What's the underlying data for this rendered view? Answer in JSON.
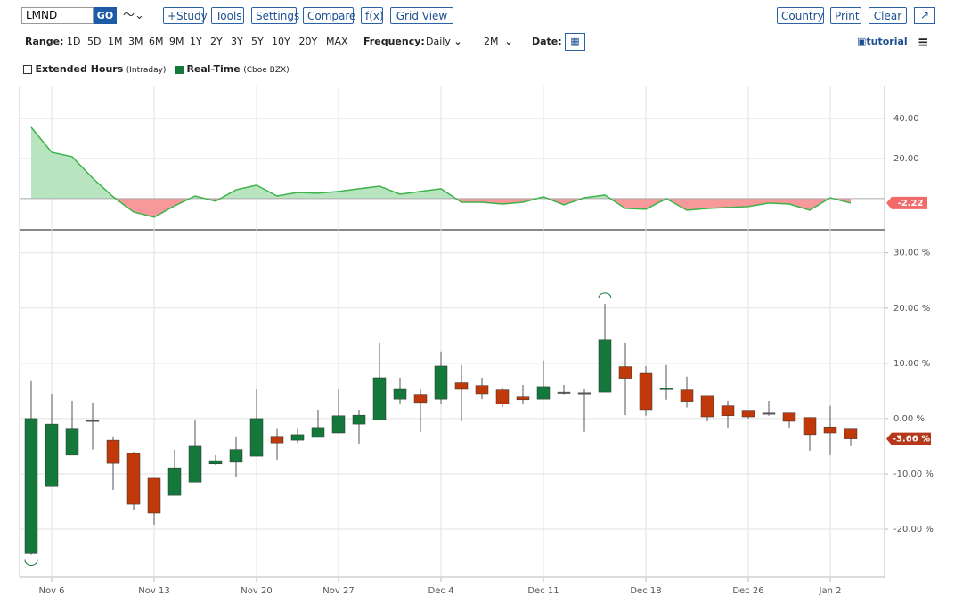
{
  "toolbar": {
    "symbol": "LMND",
    "go": "GO",
    "buttons": [
      "+Study",
      "Tools",
      "Settings",
      "Compare",
      "f(x)",
      "Grid View"
    ],
    "right_buttons": [
      "Country",
      "Print",
      "Clear"
    ]
  },
  "range": {
    "label": "Range:",
    "options": [
      "1D",
      "5D",
      "1M",
      "3M",
      "6M",
      "9M",
      "1Y",
      "2Y",
      "3Y",
      "5Y",
      "10Y",
      "20Y",
      "MAX"
    ]
  },
  "frequency": {
    "label": "Frequency:",
    "value": "Daily"
  },
  "period": "2M",
  "date_label": "Date:",
  "tutorial": "tutorial",
  "legend": [
    {
      "label": "Extended Hours",
      "note": "(Intraday)"
    },
    {
      "label": "Real-Time",
      "note": "(Cboe BZX)"
    }
  ],
  "chart_data": [
    {
      "type": "area",
      "values": [
        35.6,
        23.1,
        20.9,
        10.2,
        0.9,
        -6.7,
        -9.3,
        -3.6,
        1.3,
        -1.3,
        4.4,
        6.7,
        1.3,
        3.1,
        2.7,
        3.6,
        4.9,
        6.2,
        2.2,
        3.6,
        4.9,
        -1.8,
        -1.8,
        -2.7,
        -1.8,
        0.9,
        -3.1,
        0.4,
        1.8,
        -4.9,
        -5.3,
        0,
        -5.8,
        -4.9,
        -4.4,
        -4.0,
        -2.2,
        -2.7,
        -5.8,
        0.4,
        -2.22
      ],
      "ylim": [
        -15.6,
        56.9
      ],
      "yticks": [
        {
          "value": 20,
          "label": "20.00"
        },
        {
          "value": 40,
          "label": "40.00"
        }
      ],
      "line_color": "#3cb44b",
      "positive_color": "#b9e4c0",
      "negative_color": "#f7999b",
      "tag_color": "#f26b6b"
    },
    {
      "type": "candlestick",
      "categories": [
        null,
        "Nov 6",
        null,
        null,
        null,
        null,
        "Nov 13",
        null,
        null,
        null,
        null,
        "Nov 20",
        null,
        null,
        null,
        "Nov 27",
        null,
        null,
        null,
        null,
        "Dec 4",
        null,
        null,
        null,
        null,
        "Dec 11",
        null,
        null,
        null,
        null,
        "Dec 18",
        null,
        null,
        null,
        null,
        "Dec 26",
        null,
        null,
        null,
        "Jan 2",
        null
      ],
      "open": [
        -24.4,
        -12.3,
        -6.6,
        -0.3,
        -3.9,
        -6.3,
        -10.8,
        -13.9,
        -11.5,
        -8.2,
        -7.9,
        -6.8,
        -3.2,
        -3.9,
        -3.4,
        -2.6,
        -1.0,
        -0.3,
        3.5,
        4.4,
        3.5,
        6.5,
        6.0,
        5.2,
        3.9,
        3.5,
        4.8,
        4.7,
        4.8,
        9.4,
        8.2,
        5.3,
        5.2,
        4.2,
        2.3,
        1.5,
        1.0,
        1.0,
        0.2,
        -1.5,
        -1.9
      ],
      "high": [
        6.8,
        4.5,
        3.2,
        2.9,
        -3.2,
        -6.0,
        -10.8,
        -5.6,
        -0.3,
        -6.6,
        -3.2,
        5.3,
        -1.9,
        -1.9,
        1.6,
        5.3,
        1.6,
        13.7,
        7.4,
        5.3,
        12.1,
        9.7,
        7.4,
        5.5,
        6.1,
        10.5,
        6.1,
        5.3,
        20.8,
        13.7,
        9.5,
        9.7,
        7.6,
        4.2,
        3.2,
        1.5,
        3.2,
        1.0,
        0.2,
        2.3,
        -1.9
      ],
      "low": [
        -24.6,
        -12.3,
        -6.6,
        -5.6,
        -12.9,
        -16.6,
        -19.2,
        -13.9,
        -11.5,
        -8.4,
        -10.5,
        -6.8,
        -7.4,
        -4.4,
        -3.4,
        -2.6,
        -4.5,
        -0.3,
        2.6,
        -2.4,
        2.6,
        -0.5,
        3.5,
        2.1,
        2.6,
        3.5,
        4.4,
        -2.4,
        4.8,
        0.6,
        0.5,
        3.4,
        2.0,
        -0.5,
        -1.6,
        0,
        0.5,
        -1.6,
        -5.8,
        -6.6,
        -5.0
      ],
      "close": [
        0,
        -1.0,
        -1.9,
        -0.3,
        -8.1,
        -15.5,
        -17.1,
        -8.9,
        -5.0,
        -7.6,
        -5.6,
        0,
        -4.4,
        -2.9,
        -1.6,
        0.5,
        0.6,
        7.4,
        5.3,
        2.9,
        9.5,
        5.3,
        4.5,
        2.6,
        3.4,
        5.8,
        4.8,
        4.7,
        14.2,
        7.3,
        1.6,
        5.5,
        3.1,
        0.3,
        0.5,
        0.3,
        1.0,
        -0.5,
        -2.9,
        -2.6,
        -3.66
      ],
      "last_close_label": "-3.66 %",
      "ylim": [
        -28.7,
        33.5
      ],
      "yticks": [
        {
          "value": -20,
          "label": "-20.00 %"
        },
        {
          "value": -10,
          "label": "-10.00 %"
        },
        {
          "value": 0,
          "label": "0.00 %"
        },
        {
          "value": 10,
          "label": "10.00 %"
        },
        {
          "value": 20,
          "label": "20.00 %"
        },
        {
          "value": 30,
          "label": "30.00 %"
        }
      ],
      "grid": true,
      "up_color": "#13783a",
      "down_color": "#c0390b",
      "flat_color": "#555555",
      "tag_color": "#b5381a"
    }
  ]
}
